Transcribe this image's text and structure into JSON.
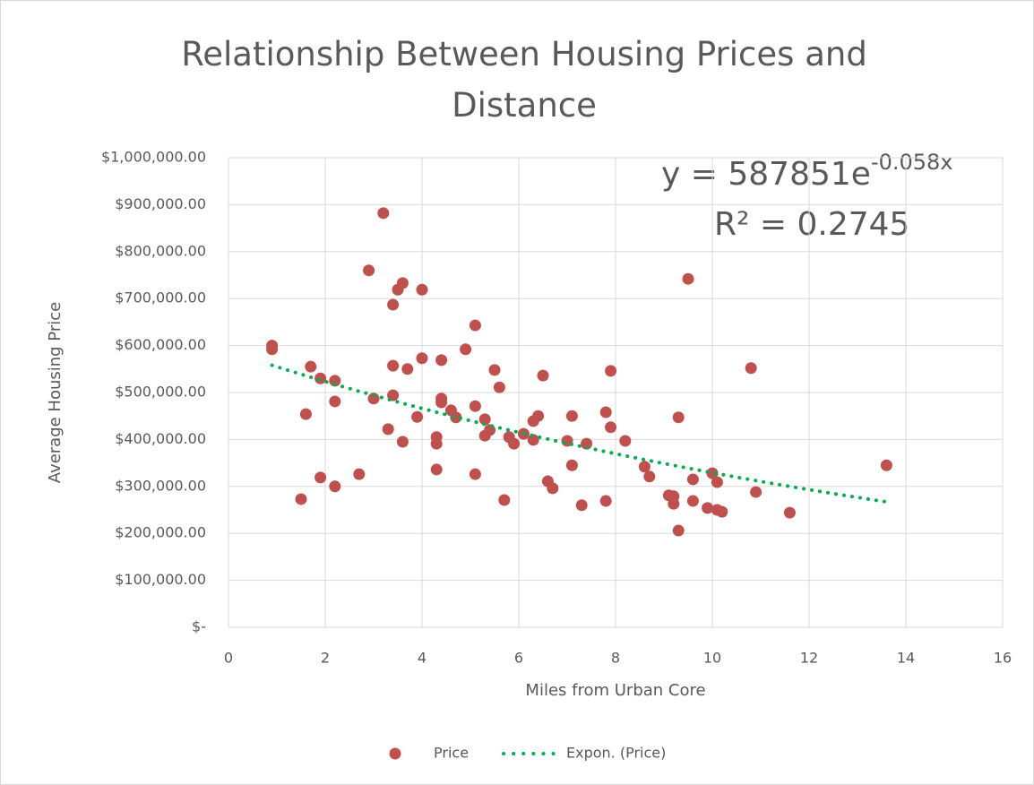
{
  "chart_data": {
    "type": "scatter",
    "title": "Relationship Between Housing Prices and Distance",
    "xlabel": "Miles from Urban Core",
    "ylabel": "Average Housing Price",
    "xlim": [
      0,
      16
    ],
    "xticks": [
      0,
      2,
      4,
      6,
      8,
      10,
      12,
      14,
      16
    ],
    "ylim": [
      0,
      1000000
    ],
    "yticks": [
      {
        "value": 0,
        "label": "$-"
      },
      {
        "value": 100000,
        "label": "$100,000.00"
      },
      {
        "value": 200000,
        "label": "$200,000.00"
      },
      {
        "value": 300000,
        "label": "$300,000.00"
      },
      {
        "value": 400000,
        "label": "$400,000.00"
      },
      {
        "value": 500000,
        "label": "$500,000.00"
      },
      {
        "value": 600000,
        "label": "$600,000.00"
      },
      {
        "value": 700000,
        "label": "$700,000.00"
      },
      {
        "value": 800000,
        "label": "$800,000.00"
      },
      {
        "value": 900000,
        "label": "$900,000.00"
      },
      {
        "value": 1000000,
        "label": "$1,000,000.00"
      }
    ],
    "grid": true,
    "legend": "bottom",
    "series": [
      {
        "name": "Price",
        "color": "#c0504d",
        "x": [
          0.9,
          0.9,
          1.5,
          1.6,
          1.7,
          1.9,
          1.9,
          2.2,
          2.2,
          2.2,
          2.7,
          2.9,
          3.0,
          3.2,
          3.3,
          3.4,
          3.4,
          3.4,
          3.5,
          3.6,
          3.6,
          3.7,
          3.9,
          4.0,
          4.0,
          4.3,
          4.3,
          4.3,
          4.4,
          4.4,
          4.4,
          4.6,
          4.7,
          4.9,
          5.1,
          5.1,
          5.1,
          5.3,
          5.3,
          5.4,
          5.5,
          5.6,
          5.7,
          5.8,
          5.9,
          6.1,
          6.3,
          6.3,
          6.4,
          6.5,
          6.6,
          6.7,
          7.0,
          7.1,
          7.1,
          7.3,
          7.4,
          7.8,
          7.8,
          7.9,
          7.9,
          8.2,
          8.6,
          8.7,
          9.1,
          9.2,
          9.2,
          9.3,
          9.3,
          9.5,
          9.6,
          9.6,
          9.9,
          10.0,
          10.1,
          10.1,
          10.2,
          10.8,
          10.9,
          11.6,
          13.6
        ],
        "values": [
          600000,
          592000,
          273000,
          454000,
          555000,
          530000,
          319000,
          525000,
          481000,
          300000,
          326000,
          760000,
          487000,
          882000,
          422000,
          687000,
          557000,
          494000,
          719000,
          733000,
          395000,
          550000,
          448000,
          719000,
          573000,
          405000,
          391000,
          336000,
          569000,
          487000,
          479000,
          462000,
          447000,
          592000,
          643000,
          471000,
          326000,
          443000,
          408000,
          420000,
          548000,
          511000,
          271000,
          405000,
          391000,
          412000,
          399000,
          439000,
          450000,
          536000,
          311000,
          296000,
          397000,
          450000,
          345000,
          260000,
          391000,
          458000,
          269000,
          546000,
          426000,
          397000,
          342000,
          321000,
          281000,
          279000,
          263000,
          447000,
          206000,
          742000,
          315000,
          269000,
          254000,
          328000,
          309000,
          250000,
          246000,
          552000,
          288000,
          244000,
          345000
        ]
      }
    ],
    "trendline": {
      "name": "Expon. (Price)",
      "color": "#00b050",
      "type": "exponential",
      "a": 587851,
      "b": -0.058,
      "equation_label": "y = 587851e",
      "equation_exponent_label": "-0.058x",
      "r2_label": "R² = 0.2745"
    }
  }
}
